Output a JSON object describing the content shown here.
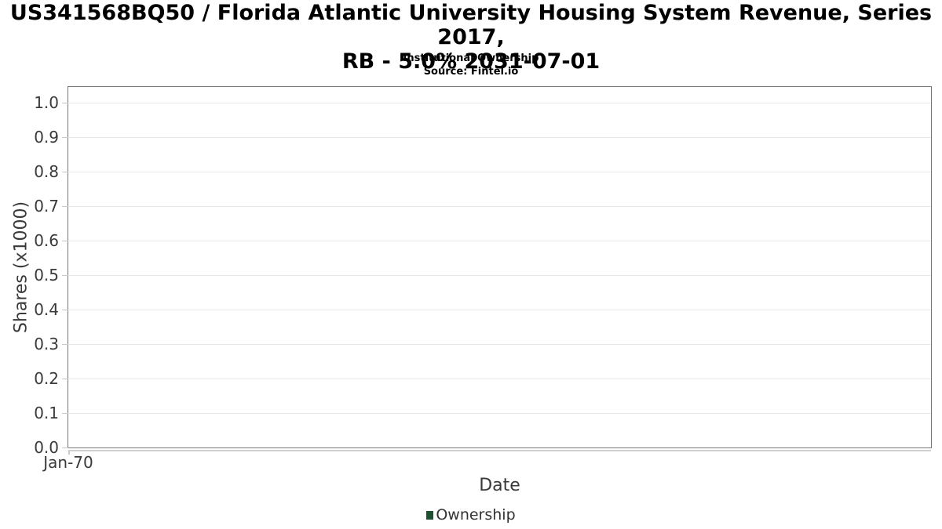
{
  "header": {
    "title_line1": "US341568BQ50 / Florida Atlantic University Housing System Revenue, Series 2017,",
    "title_line2": "RB - 5.0% 2031-07-01",
    "subtitle": "Institutional Ownership",
    "source": "Source: Fintel.io"
  },
  "chart_data": {
    "type": "line",
    "title": "US341568BQ50 / Florida Atlantic University Housing System Revenue, Series 2017, RB - 5.0% 2031-07-01",
    "subtitle": "Institutional Ownership",
    "source": "Source: Fintel.io",
    "xlabel": "Date",
    "ylabel": "Shares (x1000)",
    "x_tick_labels": [
      "Jan-70"
    ],
    "y_tick_labels": [
      "0.0",
      "0.1",
      "0.2",
      "0.3",
      "0.4",
      "0.5",
      "0.6",
      "0.7",
      "0.8",
      "0.9",
      "1.0"
    ],
    "ylim": [
      0,
      1.045
    ],
    "xlim_note": "single tick at left edge of axis",
    "grid": true,
    "legend": {
      "position": "bottom-center",
      "entries": [
        {
          "label": "Ownership",
          "color": "#1d5132"
        }
      ]
    },
    "series": [
      {
        "name": "Ownership",
        "color": "#1d5132",
        "x": [],
        "values": []
      }
    ],
    "colors": {
      "plot_border": "#767676",
      "gridline": "#e8e8e8",
      "tick": "#c9c9c9",
      "axis_secondary_line": "#cfcfcf",
      "text": "#3a3a3a",
      "title_text": "#000000"
    }
  }
}
